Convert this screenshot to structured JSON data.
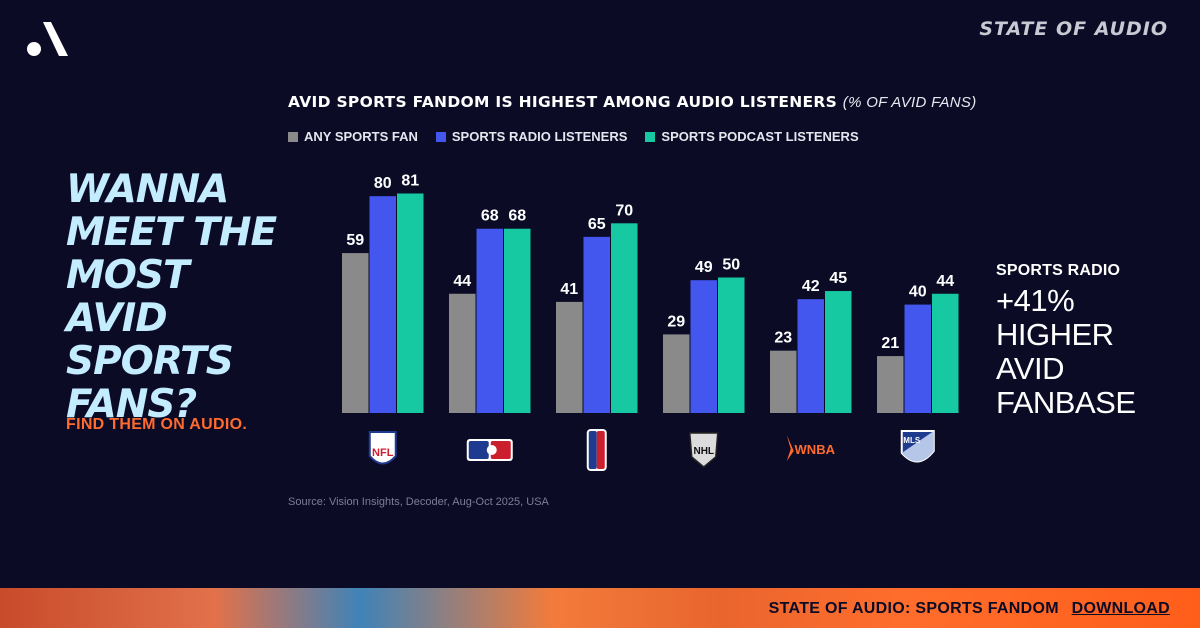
{
  "brand": {
    "logo_icon": "audacy-a-logo-icon",
    "title": "STATE OF AUDIO"
  },
  "headline": "WANNA MEET THE MOST AVID SPORTS FANS?",
  "cta_text": "FIND THEM ON AUDIO.",
  "colors": {
    "background": "#0b0b26",
    "series": [
      "#8a8a8a",
      "#4357ee",
      "#17c9a3"
    ],
    "headline": "#c4ecff",
    "accent": "#ff6a2e"
  },
  "chart_data": {
    "type": "bar",
    "title": "AVID SPORTS FANDOM IS HIGHEST AMONG AUDIO LISTENERS",
    "subtitle": "(% OF AVID FANS)",
    "categories": [
      "NFL",
      "MLB",
      "NBA",
      "NHL",
      "WNBA",
      "MLS"
    ],
    "category_icons": [
      "nfl-logo-icon",
      "mlb-logo-icon",
      "nba-logo-icon",
      "nhl-logo-icon",
      "wnba-logo-icon",
      "mls-logo-icon"
    ],
    "series": [
      {
        "name": "ANY SPORTS FAN",
        "values": [
          59,
          44,
          41,
          29,
          23,
          21
        ]
      },
      {
        "name": "SPORTS RADIO LISTENERS",
        "values": [
          80,
          68,
          65,
          49,
          42,
          40
        ]
      },
      {
        "name": "SPORTS PODCAST LISTENERS",
        "values": [
          81,
          68,
          70,
          50,
          45,
          44
        ]
      }
    ],
    "ylim": [
      0,
      100
    ],
    "grid": false,
    "legend": "top-left"
  },
  "callout": {
    "label": "SPORTS RADIO",
    "value": "+41%",
    "desc": "HIGHER AVID FANBASE"
  },
  "source": "Source: Vision Insights, Decoder, Aug-Oct 2025, USA",
  "footer": {
    "text": "STATE OF AUDIO: SPORTS FANDOM",
    "link_label": "DOWNLOAD"
  }
}
